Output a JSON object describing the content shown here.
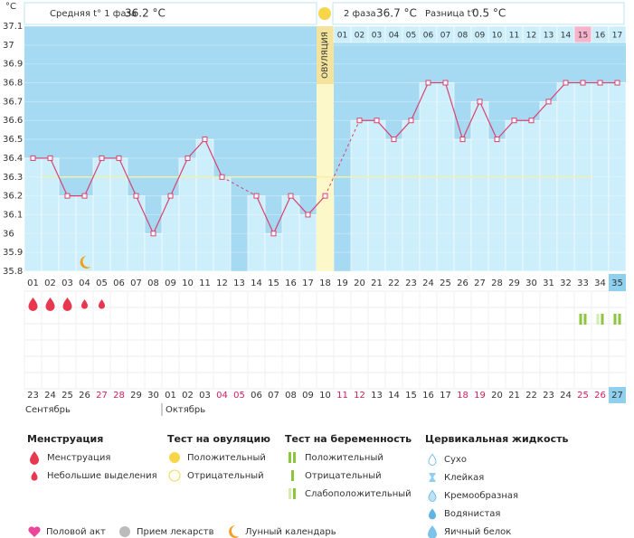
{
  "header": {
    "phase1_label": "Средняя t° 1 фаза",
    "phase1_value": "36.2 °C",
    "phase2_label": "2 фаза",
    "phase2_value": "36.7 °C",
    "difference_label": "Разница t°",
    "difference_value": "0.5 °C"
  },
  "chart_data": {
    "type": "line",
    "y_label": "°C",
    "categories": [
      "01",
      "02",
      "03",
      "04",
      "05",
      "06",
      "07",
      "08",
      "09",
      "10",
      "11",
      "12",
      "13",
      "14",
      "15",
      "16",
      "17",
      "18",
      "19",
      "20",
      "21",
      "22",
      "23",
      "24",
      "25",
      "26",
      "27",
      "28",
      "29",
      "30",
      "31",
      "32",
      "33",
      "34",
      "35"
    ],
    "dates": [
      "23",
      "24",
      "25",
      "26",
      "27",
      "28",
      "29",
      "30",
      "01",
      "02",
      "03",
      "04",
      "05",
      "06",
      "07",
      "08",
      "09",
      "10",
      "11",
      "12",
      "13",
      "14",
      "15",
      "16",
      "17",
      "18",
      "19",
      "20",
      "21",
      "22",
      "23",
      "24",
      "25",
      "26",
      "27"
    ],
    "series": [
      {
        "color": "#d9416f",
        "values": [
          36.4,
          36.4,
          36.2,
          36.2,
          36.4,
          36.4,
          36.2,
          36.0,
          36.2,
          36.4,
          36.5,
          36.3,
          null,
          36.2,
          36.0,
          36.2,
          36.1,
          36.2,
          null,
          36.6,
          36.6,
          36.5,
          36.6,
          36.8,
          36.8,
          36.5,
          36.7,
          36.5,
          36.6,
          36.6,
          36.7,
          36.8,
          36.8,
          36.8,
          36.8
        ]
      }
    ],
    "ylim": [
      35.8,
      37.1
    ],
    "yticks": [
      35.8,
      35.9,
      36,
      36.1,
      36.2,
      36.3,
      36.4,
      36.5,
      36.6,
      36.7,
      36.8,
      36.9,
      37,
      37.1
    ],
    "coverline": 36.3,
    "ovulation_day": "18",
    "ovulation_label": "ОВУЛЯЦИЯ",
    "phase2_start": "19",
    "phase2_labels": [
      "01",
      "02",
      "03",
      "04",
      "05",
      "06",
      "07",
      "08",
      "09",
      "10",
      "11",
      "12",
      "13",
      "14",
      "15",
      "16",
      "17"
    ],
    "highlight_day": "33",
    "today": "35",
    "weekends": [
      "05",
      "06",
      "12",
      "13",
      "19",
      "20",
      "26",
      "27",
      "33",
      "34"
    ],
    "months": [
      {
        "label": "Сентябрь",
        "start_day": "01"
      },
      {
        "label": "Октябрь",
        "start_day": "09"
      }
    ],
    "menstruation": [
      {
        "day": "01",
        "flow": "heavy"
      },
      {
        "day": "02",
        "flow": "heavy"
      },
      {
        "day": "03",
        "flow": "heavy"
      },
      {
        "day": "04",
        "flow": "light"
      },
      {
        "day": "05",
        "flow": "light"
      }
    ],
    "pregnancy_tests": [
      {
        "day": "33",
        "result": "positive"
      },
      {
        "day": "34",
        "result": "weak"
      },
      {
        "day": "35",
        "result": "positive"
      }
    ],
    "lunar": [
      "04"
    ]
  },
  "legend": {
    "sections": [
      {
        "title": "Менструация",
        "items": [
          "Менструация",
          "Небольшие выделения"
        ]
      },
      {
        "title": "Тест на овуляцию",
        "items": [
          "Положительный",
          "Отрицательный"
        ]
      },
      {
        "title": "Тест на беременность",
        "items": [
          "Положительный",
          "Отрицательный",
          "Слабоположительный"
        ]
      },
      {
        "title": "Цервикальная жидкость",
        "items": [
          "Сухо",
          "Клейкая",
          "Кремообразная",
          "Водянистая",
          "Яичный белок"
        ]
      }
    ],
    "extras": [
      "Половой акт",
      "Прием лекарств",
      "Лунный календарь"
    ]
  }
}
